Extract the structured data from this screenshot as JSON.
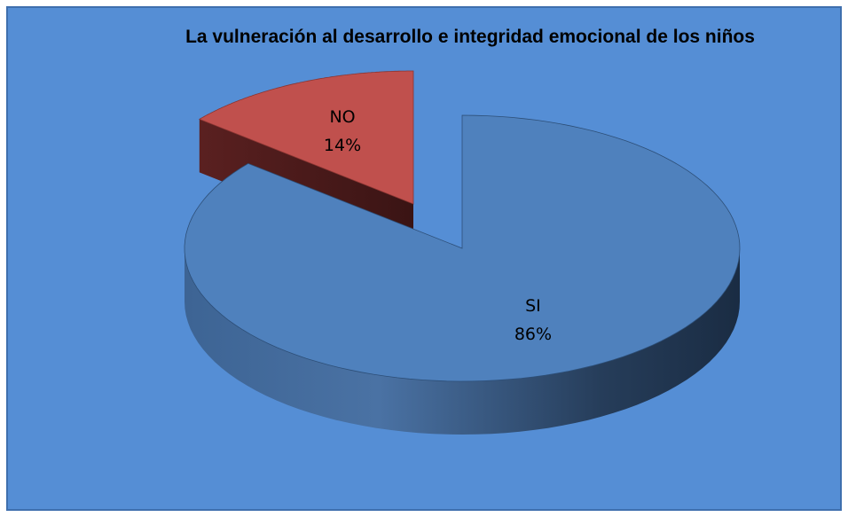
{
  "chart_data": {
    "type": "pie",
    "title": "La vulneración al desarrollo e integridad emocional de los niños",
    "categories": [
      "SI",
      "NO"
    ],
    "values": [
      86,
      14
    ],
    "value_labels": [
      "86%",
      "14%"
    ],
    "colors": [
      "#4f81bd",
      "#c0504d"
    ]
  }
}
